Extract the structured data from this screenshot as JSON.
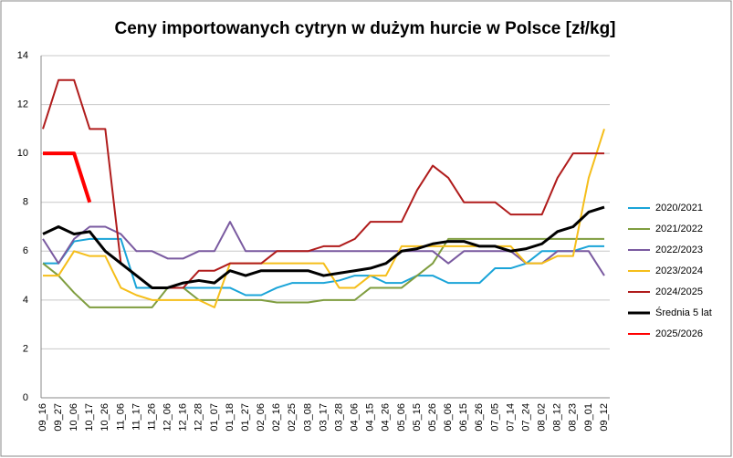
{
  "chart_data": {
    "type": "line",
    "title": "Ceny importowanych cytryn w dużym hurcie w Polsce [zł/kg]",
    "categories": [
      "09_16",
      "09_27",
      "10_06",
      "10_17",
      "10_26",
      "11_06",
      "11_17",
      "11_26",
      "12_06",
      "12_16",
      "12_28",
      "01_07",
      "01_18",
      "01_27",
      "02_06",
      "02_16",
      "02_25",
      "03_08",
      "03_17",
      "03_28",
      "04_06",
      "04_15",
      "04_26",
      "05_06",
      "05_15",
      "05_26",
      "06_06",
      "06_15",
      "06_26",
      "07_05",
      "07_14",
      "07_24",
      "08_02",
      "08_12",
      "08_23",
      "09_01",
      "09_12"
    ],
    "ylim": [
      0,
      14
    ],
    "yticks": [
      0,
      2,
      4,
      6,
      8,
      10,
      12,
      14
    ],
    "grid": true,
    "series": [
      {
        "name": "2020/2021",
        "color": "#1aa4d8",
        "values": [
          5.5,
          5.5,
          6.4,
          6.5,
          6.5,
          6.5,
          4.5,
          4.5,
          4.5,
          4.5,
          4.5,
          4.5,
          4.5,
          4.2,
          4.2,
          4.5,
          4.7,
          4.7,
          4.7,
          4.8,
          5.0,
          5.0,
          4.7,
          4.7,
          5.0,
          5.0,
          4.7,
          4.7,
          4.7,
          5.3,
          5.3,
          5.5,
          6.0,
          6.0,
          6.0,
          6.2,
          6.2
        ]
      },
      {
        "name": "2021/2022",
        "color": "#7f9d3f",
        "values": [
          5.5,
          5.0,
          4.3,
          3.7,
          3.7,
          3.7,
          3.7,
          3.7,
          4.5,
          4.5,
          4.0,
          4.0,
          4.0,
          4.0,
          4.0,
          3.9,
          3.9,
          3.9,
          4.0,
          4.0,
          4.0,
          4.5,
          4.5,
          4.5,
          5.0,
          5.5,
          6.5,
          6.5,
          6.5,
          6.5,
          6.5,
          6.5,
          6.5,
          6.5,
          6.5,
          6.5,
          6.5
        ]
      },
      {
        "name": "2022/2023",
        "color": "#7a5aa0",
        "values": [
          6.5,
          5.5,
          6.5,
          7.0,
          7.0,
          6.7,
          6.0,
          6.0,
          5.7,
          5.7,
          6.0,
          6.0,
          7.2,
          6.0,
          6.0,
          6.0,
          6.0,
          6.0,
          6.0,
          6.0,
          6.0,
          6.0,
          6.0,
          6.0,
          6.0,
          6.0,
          5.5,
          6.0,
          6.0,
          6.0,
          6.0,
          5.5,
          5.5,
          6.0,
          6.0,
          6.0,
          5.0
        ]
      },
      {
        "name": "2023/2024",
        "color": "#f5be1a",
        "values": [
          5.0,
          5.0,
          6.0,
          5.8,
          5.8,
          4.5,
          4.2,
          4.0,
          4.0,
          4.0,
          4.0,
          3.7,
          5.5,
          5.5,
          5.5,
          5.5,
          5.5,
          5.5,
          5.5,
          4.5,
          4.5,
          5.0,
          5.0,
          6.2,
          6.2,
          6.2,
          6.2,
          6.2,
          6.2,
          6.2,
          6.2,
          5.5,
          5.5,
          5.8,
          5.8,
          9.0,
          11.0
        ]
      },
      {
        "name": "2024/2025",
        "color": "#b01c1c",
        "values": [
          11,
          13,
          13,
          11,
          11,
          5.5,
          5.0,
          4.5,
          4.5,
          4.5,
          5.2,
          5.2,
          5.5,
          5.5,
          5.5,
          6.0,
          6.0,
          6.0,
          6.2,
          6.2,
          6.5,
          7.2,
          7.2,
          7.2,
          8.5,
          9.5,
          9.0,
          8.0,
          8.0,
          8.0,
          7.5,
          7.5,
          7.5,
          9.0,
          10,
          10,
          10
        ]
      },
      {
        "name": "Średnia 5 lat",
        "color": "#000000",
        "values": [
          6.7,
          7.0,
          6.7,
          6.8,
          6.0,
          5.5,
          5.0,
          4.5,
          4.5,
          4.7,
          4.8,
          4.7,
          5.2,
          5.0,
          5.2,
          5.2,
          5.2,
          5.2,
          5.0,
          5.1,
          5.2,
          5.3,
          5.5,
          6.0,
          6.1,
          6.3,
          6.4,
          6.4,
          6.2,
          6.2,
          6.0,
          6.1,
          6.3,
          6.8,
          7.0,
          7.6,
          7.8
        ]
      },
      {
        "name": "2025/2026",
        "color": "#ff0000",
        "values": [
          10,
          10,
          10,
          8,
          null,
          null,
          null,
          null,
          null,
          null,
          null,
          null,
          null,
          null,
          null,
          null,
          null,
          null,
          null,
          null,
          null,
          null,
          null,
          null,
          null,
          null,
          null,
          null,
          null,
          null,
          null,
          null,
          null,
          null,
          null,
          null,
          null
        ]
      }
    ]
  }
}
